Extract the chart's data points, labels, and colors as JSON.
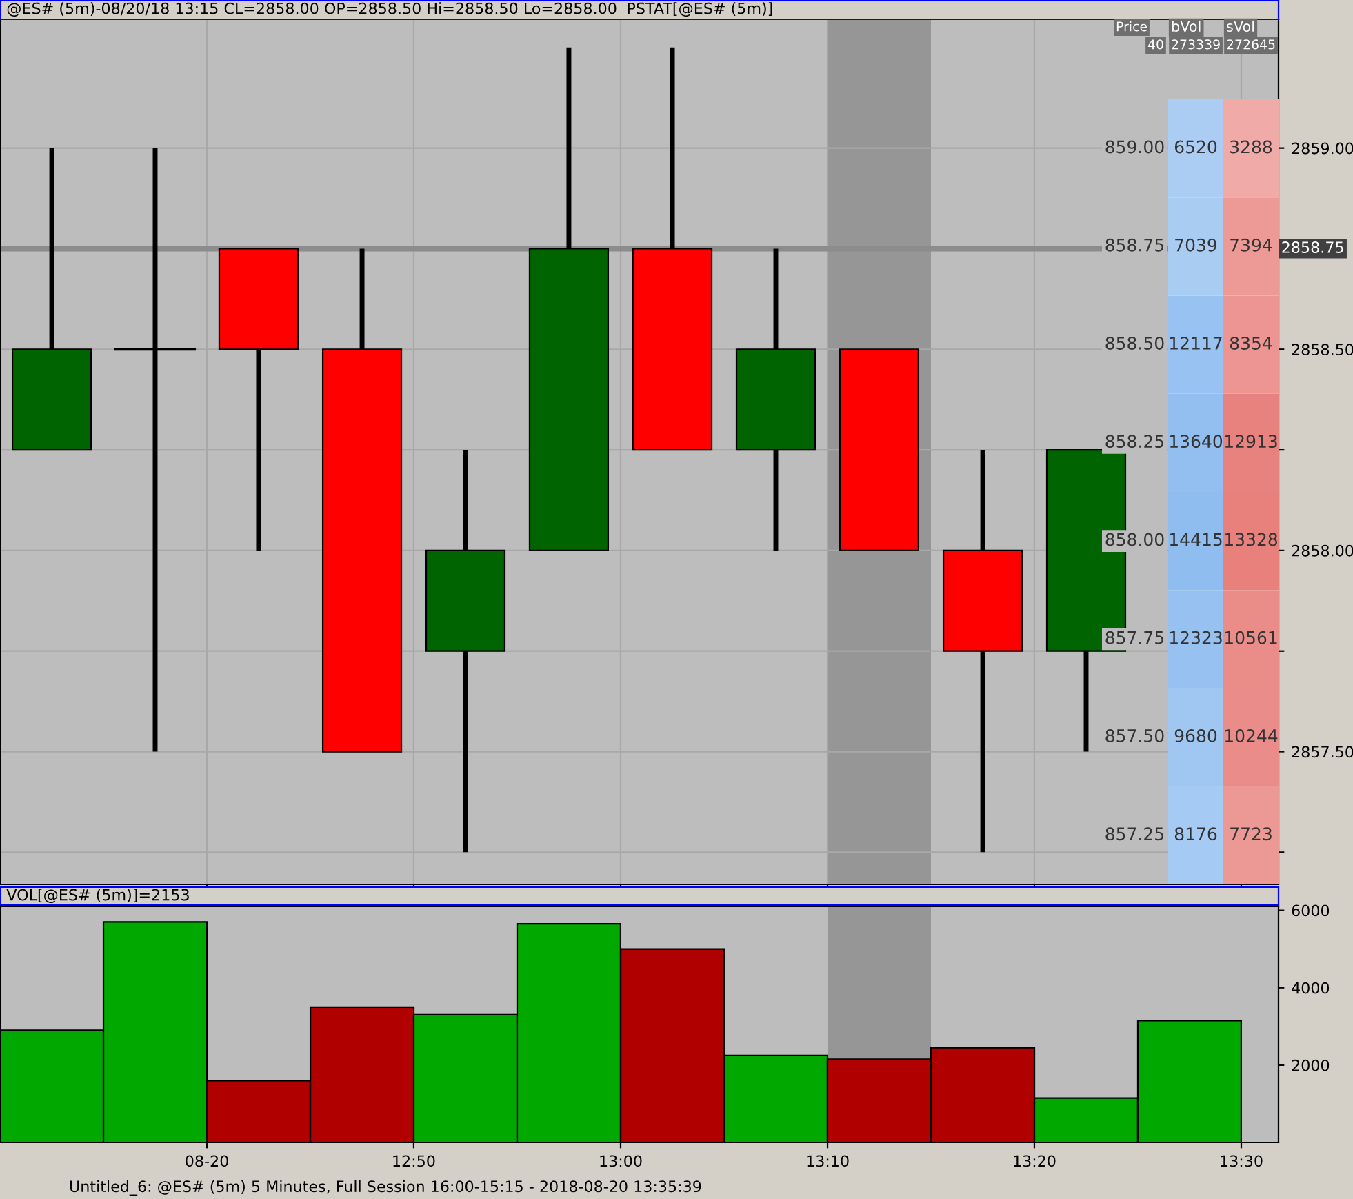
{
  "chart_data": [
    {
      "type": "candlestick",
      "title": "@ES# (5m)-08/20/18 13:15 CL=2858.00 OP=2858.50 Hi=2858.50 Lo=2858.00",
      "subtitle": "PSTAT[@ES# (5m)]",
      "x": [
        12.5417,
        12.625,
        12.7083,
        12.7917,
        12.875,
        12.9583,
        13.0417,
        13.125,
        13.2083,
        13.2917,
        13.375
      ],
      "ohlc": [
        [
          2858.25,
          2859.0,
          2858.25,
          2858.5
        ],
        [
          2858.5,
          2859.0,
          2857.5,
          2858.5
        ],
        [
          2858.75,
          2858.75,
          2858.0,
          2858.5
        ],
        [
          2858.5,
          2858.75,
          2857.5,
          2857.5
        ],
        [
          2857.75,
          2858.25,
          2857.25,
          2858.0
        ],
        [
          2858.0,
          2859.25,
          2858.0,
          2858.75
        ],
        [
          2858.75,
          2859.25,
          2858.25,
          2858.25
        ],
        [
          2858.25,
          2858.75,
          2858.0,
          2858.5
        ],
        [
          2858.5,
          2858.5,
          2858.0,
          2858.0
        ],
        [
          2858.0,
          2858.25,
          2857.25,
          2857.75
        ],
        [
          2857.75,
          2858.25,
          2857.5,
          2858.25
        ]
      ],
      "colors": [
        "#006400",
        "#000000",
        "#ff0000",
        "#ff0000",
        "#006400",
        "#006400",
        "#ff0000",
        "#006400",
        "#ff0000",
        "#ff0000",
        "#006400"
      ],
      "xlim": [
        12.5,
        13.53
      ],
      "xticks": [
        {
          "value": 12.6667,
          "label": null
        },
        {
          "value": 12.8333,
          "label": null
        },
        {
          "value": 13.0,
          "label": null
        },
        {
          "value": 13.1667,
          "label": null
        },
        {
          "value": 13.3333,
          "label": null
        },
        {
          "value": 13.5,
          "label": null
        }
      ],
      "ylim": [
        2857.17,
        2859.32
      ],
      "yticks": [
        {
          "value": 2857.25,
          "label": null
        },
        {
          "value": 2857.5,
          "label": "2857.50"
        },
        {
          "value": 2857.75,
          "label": null
        },
        {
          "value": 2858.0,
          "label": "2858.00"
        },
        {
          "value": 2858.25,
          "label": null
        },
        {
          "value": 2858.5,
          "label": "2858.50"
        },
        {
          "value": 2858.75,
          "label": null
        },
        {
          "value": 2859.0,
          "label": "2859.00"
        }
      ],
      "tick_labels": "y",
      "grid": true,
      "ref_lines": [
        {
          "axis": "y",
          "value": 2858.75,
          "label": "2858.75",
          "color": "#8c8c8c"
        }
      ],
      "bands": [
        {
          "axis": "x",
          "from": 13.1667,
          "to": 13.25,
          "color": "#969696"
        }
      ]
    },
    {
      "type": "heatmap",
      "categories": [
        "bVol",
        "sVol"
      ],
      "y_categories": [
        "859.00",
        "858.75",
        "858.50",
        "858.25",
        "858.00",
        "857.75",
        "857.50",
        "857.25"
      ],
      "cells": [
        [
          6520,
          3288
        ],
        [
          7039,
          7394
        ],
        [
          12117,
          8354
        ],
        [
          13640,
          12913
        ],
        [
          14415,
          13328
        ],
        [
          12323,
          10561
        ],
        [
          9680,
          10244
        ],
        [
          8176,
          7723
        ]
      ],
      "colors": [
        "#8fbdf0",
        "#e8807c"
      ],
      "data_labels": true,
      "annotations": [
        "Price",
        "40",
        "273339",
        "272645"
      ]
    },
    {
      "type": "bar",
      "title": "VOL[@ES# (5m)]=2153",
      "x": [
        12.5417,
        12.625,
        12.7083,
        12.7917,
        12.875,
        12.9583,
        13.0417,
        13.125,
        13.2083,
        13.2917,
        13.375,
        13.4583
      ],
      "values": [
        2900,
        5700,
        1600,
        3500,
        3300,
        5650,
        5000,
        2250,
        2153,
        2450,
        1150,
        3150
      ],
      "colors": [
        "#00a800",
        "#00a800",
        "#b00000",
        "#b00000",
        "#00a800",
        "#00a800",
        "#b00000",
        "#00a800",
        "#b00000",
        "#b00000",
        "#00a800",
        "#00a800"
      ],
      "xlim": [
        12.5,
        13.53
      ],
      "xticks": [
        {
          "value": 12.6667,
          "label": "08-20"
        },
        {
          "value": 12.8333,
          "label": "12:50"
        },
        {
          "value": 13.0,
          "label": "13:00"
        },
        {
          "value": 13.1667,
          "label": "13:10"
        },
        {
          "value": 13.3333,
          "label": "13:20"
        },
        {
          "value": 13.5,
          "label": "13:30"
        }
      ],
      "ylim": [
        0,
        6100
      ],
      "yticks": [
        2000,
        4000,
        6000
      ],
      "bands": [
        {
          "axis": "x",
          "from": 13.1667,
          "to": 13.25,
          "color": "#969696"
        }
      ],
      "annotations": [
        "Untitled_6: @ES# (5m) 5 Minutes, Full Session 16:00-15:15 - 2018-08-20 13:35:39"
      ]
    }
  ]
}
